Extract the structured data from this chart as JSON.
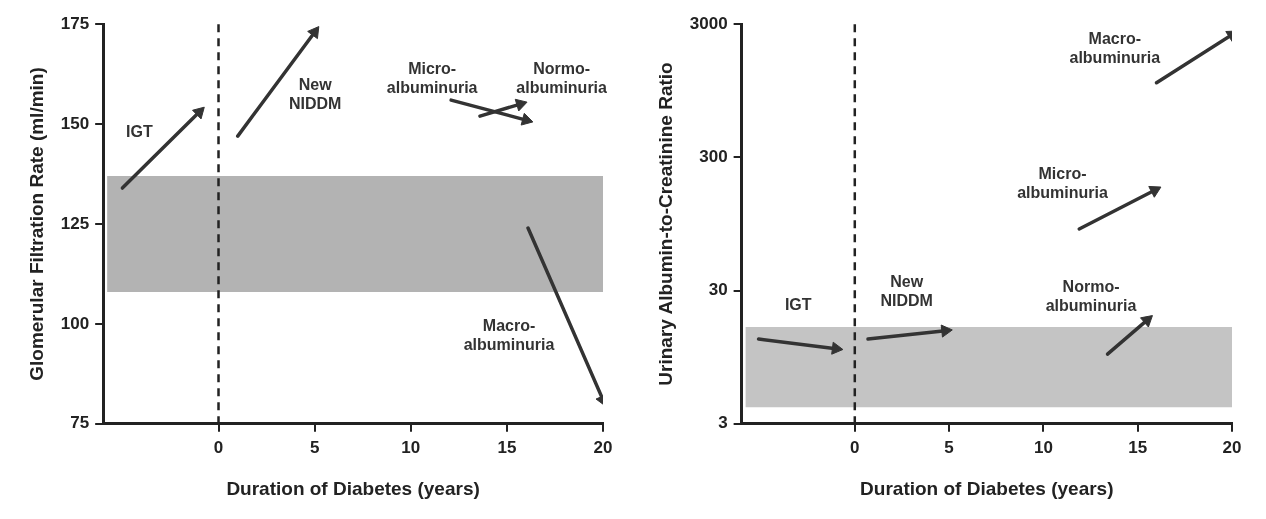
{
  "chart_data": [
    {
      "type": "line",
      "xlabel": "Duration of Diabetes (years)",
      "ylabel": "Glomerular Filtration Rate (ml/min)",
      "xlim": [
        -6,
        20
      ],
      "xticks": [
        0,
        5,
        10,
        15,
        20
      ],
      "ylim": [
        75,
        175
      ],
      "yticks": [
        75,
        100,
        125,
        150,
        175
      ],
      "grid": false,
      "legend": false,
      "marker": "triangle",
      "line_style": "solid",
      "series": [
        {
          "name": "IGT",
          "color": "#333333",
          "x": [
            -5,
            -1
          ],
          "values": [
            134,
            153
          ]
        },
        {
          "name": "New NIDDM",
          "color": "#333333",
          "x": [
            1,
            5
          ],
          "values": [
            147,
            173
          ]
        },
        {
          "name": "Micro-albuminuria",
          "color": "#333333",
          "x": [
            12.1,
            16
          ],
          "values": [
            156,
            151
          ]
        },
        {
          "name": "Normo-albuminuria",
          "color": "#333333",
          "x": [
            13.6,
            15.7
          ],
          "values": [
            152,
            155
          ]
        },
        {
          "name": "Macro-albuminuria",
          "color": "#333333",
          "x": [
            16.1,
            20
          ],
          "values": [
            124,
            81
          ]
        }
      ],
      "bands": [
        {
          "axis": "y",
          "from": 108,
          "to": 137,
          "color": "#b3b3b3"
        }
      ],
      "ref_lines": [
        {
          "axis": "x",
          "value": 0,
          "color": "#222222",
          "line_style": "dashed"
        }
      ]
    },
    {
      "type": "line",
      "xlabel": "Duration of Diabetes (years)",
      "ylabel": "Urinary Albumin-to-Creatinine Ratio",
      "xlim": [
        -6,
        20
      ],
      "xticks": [
        0,
        5,
        10,
        15,
        20
      ],
      "ylim": [
        3,
        3000
      ],
      "yticks": [
        3,
        30,
        300,
        3000
      ],
      "log": true,
      "grid": false,
      "legend": false,
      "marker": "triangle",
      "line_style": "solid",
      "series": [
        {
          "name": "IGT",
          "color": "#333333",
          "x": [
            -5.1,
            -1
          ],
          "values": [
            13,
            11
          ]
        },
        {
          "name": "New NIDDM",
          "color": "#333333",
          "x": [
            0.7,
            4.8
          ],
          "values": [
            13,
            15
          ]
        },
        {
          "name": "Normo-albuminuria",
          "color": "#333333",
          "x": [
            13.4,
            15.5
          ],
          "values": [
            10,
            18
          ]
        },
        {
          "name": "Micro-albuminuria",
          "color": "#333333",
          "x": [
            11.9,
            15.9
          ],
          "values": [
            87,
            170
          ]
        },
        {
          "name": "Macro-albuminuria",
          "color": "#333333",
          "x": [
            16,
            20
          ],
          "values": [
            1090,
            2500
          ]
        }
      ],
      "bands": [
        {
          "axis": "y",
          "from": 4,
          "to": 16,
          "color": "#c4c4c4"
        }
      ],
      "ref_lines": [
        {
          "axis": "x",
          "value": 0,
          "color": "#222222",
          "line_style": "dashed"
        }
      ]
    }
  ]
}
